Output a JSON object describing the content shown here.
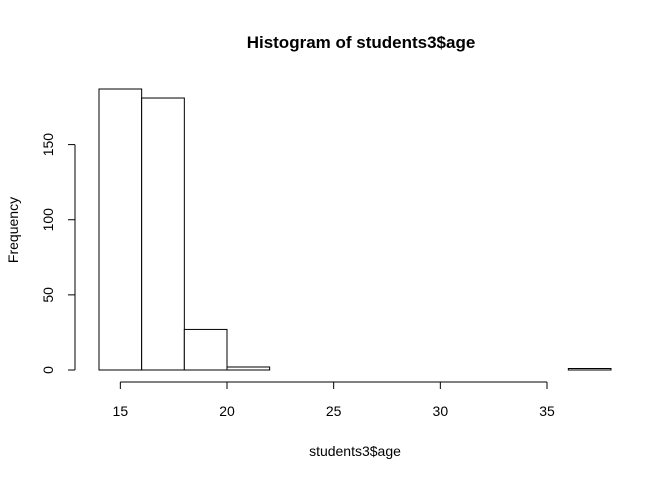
{
  "chart_data": {
    "type": "bar",
    "subtype": "histogram",
    "title": "Histogram of students3$age",
    "xlabel": "students3$age",
    "ylabel": "Frequency",
    "bins": [
      {
        "start": 14,
        "end": 16,
        "count": 187
      },
      {
        "start": 16,
        "end": 18,
        "count": 181
      },
      {
        "start": 18,
        "end": 20,
        "count": 27
      },
      {
        "start": 20,
        "end": 22,
        "count": 2
      },
      {
        "start": 22,
        "end": 24,
        "count": 0
      },
      {
        "start": 24,
        "end": 26,
        "count": 0
      },
      {
        "start": 26,
        "end": 28,
        "count": 0
      },
      {
        "start": 28,
        "end": 30,
        "count": 0
      },
      {
        "start": 30,
        "end": 32,
        "count": 0
      },
      {
        "start": 32,
        "end": 34,
        "count": 0
      },
      {
        "start": 34,
        "end": 36,
        "count": 0
      },
      {
        "start": 36,
        "end": 38,
        "count": 1
      }
    ],
    "xticks": [
      15,
      20,
      25,
      30,
      35
    ],
    "yticks": [
      0,
      50,
      100,
      150
    ],
    "xlim": [
      14,
      38
    ],
    "ylim": [
      0,
      187
    ],
    "grid": false,
    "legend": "none",
    "colors": {
      "bar_fill": "#ffffff",
      "bar_stroke": "#000000"
    }
  }
}
